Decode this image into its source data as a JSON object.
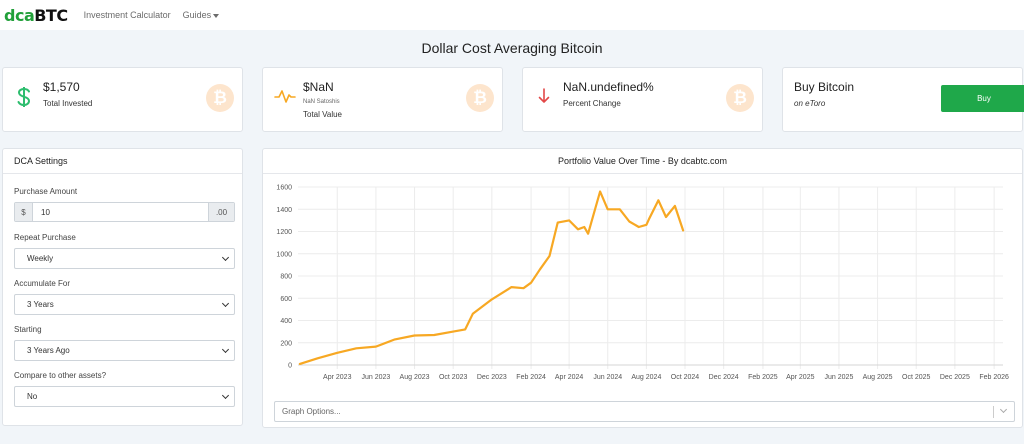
{
  "nav": {
    "logo_dca": "dca",
    "logo_btc": "BTC",
    "links": [
      "Investment Calculator",
      "Guides"
    ]
  },
  "page_title": "Dollar Cost Averaging Bitcoin",
  "stats": {
    "invested": {
      "value": "$1,570",
      "label": "Total Invested",
      "icon": "dollar-icon"
    },
    "total_value": {
      "value": "$NaN",
      "sub": "NaN Satoshis",
      "label": "Total Value",
      "icon": "pulse-icon"
    },
    "change": {
      "value": "NaN.undefined%",
      "label": "Percent Change",
      "icon": "arrow-down-icon"
    },
    "buy": {
      "title": "Buy Bitcoin",
      "sub": "on eToro",
      "button": "Buy"
    },
    "coin_glyph": "₿"
  },
  "settings": {
    "header": "DCA Settings",
    "purchase_amount": {
      "label": "Purchase Amount",
      "prefix": "$",
      "value": "10",
      "suffix": ".00"
    },
    "repeat": {
      "label": "Repeat Purchase",
      "value": "Weekly"
    },
    "accumulate": {
      "label": "Accumulate For",
      "value": "3 Years"
    },
    "starting": {
      "label": "Starting",
      "value": "3 Years Ago"
    },
    "compare": {
      "label": "Compare to other assets?",
      "value": "No"
    }
  },
  "chart_card": {
    "graph_options_placeholder": "Graph Options..."
  },
  "colors": {
    "accent_green": "#1fa84a",
    "line": "#f7a823",
    "coin": "#fde5cd"
  },
  "chart_data": {
    "type": "line",
    "title": "Portfolio Value Over Time - By dcabtc.com",
    "xlabel": "",
    "ylabel": "",
    "ylim": [
      0,
      1600
    ],
    "yticks": [
      0,
      200,
      400,
      600,
      800,
      1000,
      1200,
      1400,
      1600
    ],
    "xlim": [
      "2023-01-29",
      "2026-02-15"
    ],
    "xtick_labels": [
      "Apr 2023",
      "Jun 2023",
      "Aug 2023",
      "Oct 2023",
      "Dec 2023",
      "Feb 2024",
      "Apr 2024",
      "Jun 2024",
      "Aug 2024",
      "Oct 2024",
      "Dec 2024",
      "Feb 2025",
      "Apr 2025",
      "Jun 2025",
      "Aug 2025",
      "Oct 2025",
      "Dec 2025",
      "Feb 2026"
    ],
    "grid": true,
    "series": [
      {
        "x": [
          "2023-02-01",
          "2023-03-01",
          "2023-04-01",
          "2023-05-01",
          "2023-06-01",
          "2023-07-01",
          "2023-08-01",
          "2023-09-01",
          "2023-10-01",
          "2023-10-20",
          "2023-11-01",
          "2023-12-01",
          "2024-01-01",
          "2024-01-20",
          "2024-02-01",
          "2024-02-15",
          "2024-03-01",
          "2024-03-14",
          "2024-04-01",
          "2024-04-15",
          "2024-04-25",
          "2024-05-01",
          "2024-05-20",
          "2024-06-01",
          "2024-06-20",
          "2024-07-05",
          "2024-07-20",
          "2024-08-01",
          "2024-08-05",
          "2024-08-20",
          "2024-09-01",
          "2024-09-15",
          "2024-09-28"
        ],
        "y": [
          10,
          60,
          110,
          150,
          165,
          230,
          265,
          270,
          300,
          320,
          460,
          590,
          700,
          690,
          740,
          860,
          980,
          1280,
          1300,
          1220,
          1240,
          1180,
          1560,
          1400,
          1400,
          1290,
          1240,
          1260,
          1310,
          1480,
          1330,
          1430,
          1210
        ]
      }
    ]
  }
}
